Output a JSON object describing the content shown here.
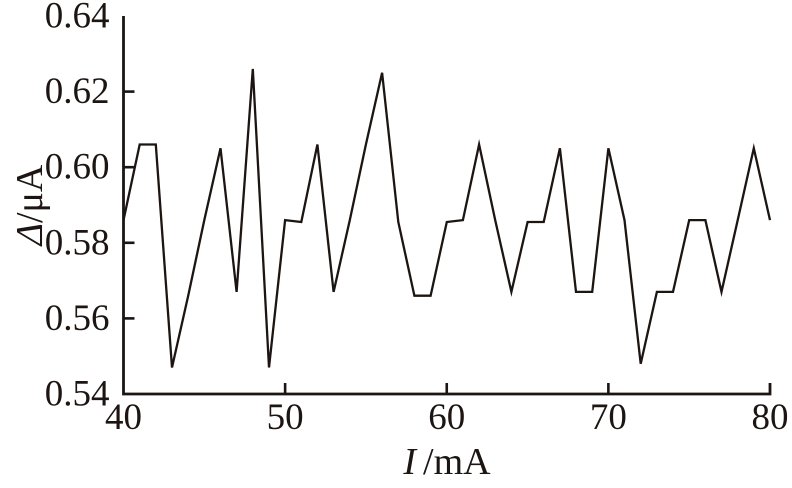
{
  "chart_data": {
    "type": "line",
    "title": "",
    "xlabel_var": "I",
    "xlabel_unit": "/mA",
    "ylabel_var": "Δ",
    "ylabel_unit": "/μA",
    "x": [
      40,
      41,
      42,
      43,
      44,
      45,
      46,
      47,
      48,
      49,
      50,
      51,
      52,
      53,
      54,
      55,
      56,
      57,
      58,
      59,
      60,
      61,
      62,
      63,
      64,
      65,
      66,
      67,
      68,
      69,
      70,
      71,
      72,
      73,
      74,
      75,
      76,
      77,
      78,
      79,
      80
    ],
    "y": [
      0.586,
      0.606,
      0.606,
      0.547,
      0.566,
      0.586,
      0.605,
      0.567,
      0.626,
      0.547,
      0.586,
      0.5855,
      0.606,
      0.567,
      0.586,
      0.606,
      0.625,
      0.5855,
      0.566,
      0.566,
      0.5855,
      0.586,
      0.606,
      0.586,
      0.567,
      0.5855,
      0.5855,
      0.605,
      0.567,
      0.567,
      0.605,
      0.586,
      0.548,
      0.567,
      0.567,
      0.586,
      0.586,
      0.567,
      0.586,
      0.605,
      0.586
    ],
    "xlim": [
      40,
      80
    ],
    "ylim": [
      0.54,
      0.64
    ],
    "xticks": [
      40,
      50,
      60,
      70,
      80
    ],
    "xtick_labels": [
      "40",
      "50",
      "60",
      "70",
      "80"
    ],
    "yticks": [
      0.54,
      0.56,
      0.58,
      0.6,
      0.62,
      0.64
    ],
    "ytick_labels": [
      "0.54",
      "0.56",
      "0.58",
      "0.60",
      "0.62",
      "0.64"
    ],
    "grid": false,
    "legend": "none",
    "line_color": "#1c1512",
    "axis_color": "#1c1512",
    "background": "#ffffff"
  }
}
